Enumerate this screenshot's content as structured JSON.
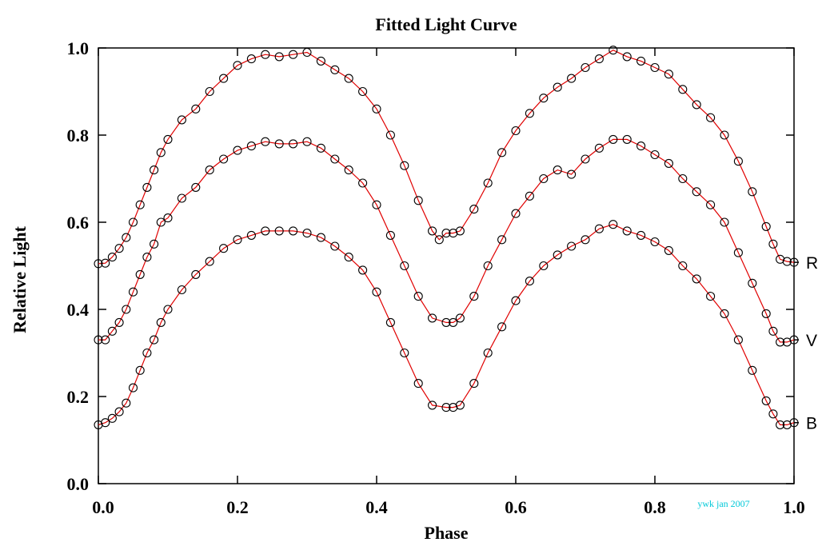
{
  "chart_data": {
    "type": "scatter",
    "title": "Fitted Light Curve",
    "xlabel": "Phase",
    "ylabel": "Relative Light",
    "xlim": [
      0.0,
      1.0
    ],
    "ylim": [
      0.0,
      1.0
    ],
    "x_ticks": [
      "0.0",
      "0.2",
      "0.4",
      "0.6",
      "0.8",
      "1.0"
    ],
    "y_ticks": [
      "0.0",
      "0.2",
      "0.4",
      "0.6",
      "0.8",
      "1.0"
    ],
    "grid": false,
    "annotation": "ywk jan 2007",
    "colors": {
      "fit": "#e00000",
      "points": "#000000",
      "annotation": "#00c8d8"
    },
    "series": [
      {
        "name": "R",
        "points": [
          [
            0.0,
            0.505
          ],
          [
            0.01,
            0.506
          ],
          [
            0.02,
            0.52
          ],
          [
            0.03,
            0.54
          ],
          [
            0.04,
            0.565
          ],
          [
            0.05,
            0.6
          ],
          [
            0.06,
            0.64
          ],
          [
            0.07,
            0.68
          ],
          [
            0.08,
            0.72
          ],
          [
            0.09,
            0.76
          ],
          [
            0.1,
            0.79
          ],
          [
            0.12,
            0.835
          ],
          [
            0.14,
            0.86
          ],
          [
            0.16,
            0.9
          ],
          [
            0.18,
            0.93
          ],
          [
            0.2,
            0.96
          ],
          [
            0.22,
            0.975
          ],
          [
            0.24,
            0.985
          ],
          [
            0.26,
            0.98
          ],
          [
            0.28,
            0.985
          ],
          [
            0.3,
            0.99
          ],
          [
            0.32,
            0.97
          ],
          [
            0.34,
            0.95
          ],
          [
            0.36,
            0.93
          ],
          [
            0.38,
            0.9
          ],
          [
            0.4,
            0.86
          ],
          [
            0.42,
            0.8
          ],
          [
            0.44,
            0.73
          ],
          [
            0.46,
            0.65
          ],
          [
            0.48,
            0.58
          ],
          [
            0.49,
            0.56
          ],
          [
            0.5,
            0.575
          ],
          [
            0.51,
            0.575
          ],
          [
            0.52,
            0.58
          ],
          [
            0.54,
            0.63
          ],
          [
            0.56,
            0.69
          ],
          [
            0.58,
            0.76
          ],
          [
            0.6,
            0.81
          ],
          [
            0.62,
            0.85
          ],
          [
            0.64,
            0.885
          ],
          [
            0.66,
            0.91
          ],
          [
            0.68,
            0.93
          ],
          [
            0.7,
            0.955
          ],
          [
            0.72,
            0.975
          ],
          [
            0.74,
            0.995
          ],
          [
            0.76,
            0.98
          ],
          [
            0.78,
            0.97
          ],
          [
            0.8,
            0.955
          ],
          [
            0.82,
            0.94
          ],
          [
            0.84,
            0.905
          ],
          [
            0.86,
            0.87
          ],
          [
            0.88,
            0.84
          ],
          [
            0.9,
            0.8
          ],
          [
            0.92,
            0.74
          ],
          [
            0.94,
            0.67
          ],
          [
            0.96,
            0.59
          ],
          [
            0.97,
            0.55
          ],
          [
            0.98,
            0.515
          ],
          [
            0.99,
            0.51
          ],
          [
            1.0,
            0.508
          ]
        ]
      },
      {
        "name": "V",
        "points": [
          [
            0.0,
            0.33
          ],
          [
            0.01,
            0.33
          ],
          [
            0.02,
            0.35
          ],
          [
            0.03,
            0.37
          ],
          [
            0.04,
            0.4
          ],
          [
            0.05,
            0.44
          ],
          [
            0.06,
            0.48
          ],
          [
            0.07,
            0.52
          ],
          [
            0.08,
            0.55
          ],
          [
            0.09,
            0.6
          ],
          [
            0.1,
            0.61
          ],
          [
            0.12,
            0.655
          ],
          [
            0.14,
            0.68
          ],
          [
            0.16,
            0.72
          ],
          [
            0.18,
            0.745
          ],
          [
            0.2,
            0.765
          ],
          [
            0.22,
            0.775
          ],
          [
            0.24,
            0.785
          ],
          [
            0.26,
            0.78
          ],
          [
            0.28,
            0.78
          ],
          [
            0.3,
            0.785
          ],
          [
            0.32,
            0.77
          ],
          [
            0.34,
            0.745
          ],
          [
            0.36,
            0.72
          ],
          [
            0.38,
            0.69
          ],
          [
            0.4,
            0.64
          ],
          [
            0.42,
            0.57
          ],
          [
            0.44,
            0.5
          ],
          [
            0.46,
            0.43
          ],
          [
            0.48,
            0.38
          ],
          [
            0.5,
            0.37
          ],
          [
            0.51,
            0.37
          ],
          [
            0.52,
            0.38
          ],
          [
            0.54,
            0.43
          ],
          [
            0.56,
            0.5
          ],
          [
            0.58,
            0.56
          ],
          [
            0.6,
            0.62
          ],
          [
            0.62,
            0.66
          ],
          [
            0.64,
            0.7
          ],
          [
            0.66,
            0.72
          ],
          [
            0.68,
            0.71
          ],
          [
            0.7,
            0.745
          ],
          [
            0.72,
            0.77
          ],
          [
            0.74,
            0.79
          ],
          [
            0.76,
            0.79
          ],
          [
            0.78,
            0.775
          ],
          [
            0.8,
            0.755
          ],
          [
            0.82,
            0.735
          ],
          [
            0.84,
            0.7
          ],
          [
            0.86,
            0.67
          ],
          [
            0.88,
            0.64
          ],
          [
            0.9,
            0.6
          ],
          [
            0.92,
            0.53
          ],
          [
            0.94,
            0.46
          ],
          [
            0.96,
            0.39
          ],
          [
            0.97,
            0.35
          ],
          [
            0.98,
            0.325
          ],
          [
            0.99,
            0.325
          ],
          [
            1.0,
            0.33
          ]
        ]
      },
      {
        "name": "B",
        "points": [
          [
            0.0,
            0.135
          ],
          [
            0.01,
            0.14
          ],
          [
            0.02,
            0.15
          ],
          [
            0.03,
            0.165
          ],
          [
            0.04,
            0.185
          ],
          [
            0.05,
            0.22
          ],
          [
            0.06,
            0.26
          ],
          [
            0.07,
            0.3
          ],
          [
            0.08,
            0.33
          ],
          [
            0.09,
            0.37
          ],
          [
            0.1,
            0.4
          ],
          [
            0.12,
            0.445
          ],
          [
            0.14,
            0.48
          ],
          [
            0.16,
            0.51
          ],
          [
            0.18,
            0.54
          ],
          [
            0.2,
            0.56
          ],
          [
            0.22,
            0.57
          ],
          [
            0.24,
            0.58
          ],
          [
            0.26,
            0.58
          ],
          [
            0.28,
            0.58
          ],
          [
            0.3,
            0.575
          ],
          [
            0.32,
            0.565
          ],
          [
            0.34,
            0.545
          ],
          [
            0.36,
            0.52
          ],
          [
            0.38,
            0.49
          ],
          [
            0.4,
            0.44
          ],
          [
            0.42,
            0.37
          ],
          [
            0.44,
            0.3
          ],
          [
            0.46,
            0.23
          ],
          [
            0.48,
            0.18
          ],
          [
            0.5,
            0.175
          ],
          [
            0.51,
            0.175
          ],
          [
            0.52,
            0.18
          ],
          [
            0.54,
            0.23
          ],
          [
            0.56,
            0.3
          ],
          [
            0.58,
            0.36
          ],
          [
            0.6,
            0.42
          ],
          [
            0.62,
            0.465
          ],
          [
            0.64,
            0.5
          ],
          [
            0.66,
            0.525
          ],
          [
            0.68,
            0.545
          ],
          [
            0.7,
            0.56
          ],
          [
            0.72,
            0.585
          ],
          [
            0.74,
            0.595
          ],
          [
            0.76,
            0.58
          ],
          [
            0.78,
            0.57
          ],
          [
            0.8,
            0.555
          ],
          [
            0.82,
            0.535
          ],
          [
            0.84,
            0.5
          ],
          [
            0.86,
            0.47
          ],
          [
            0.88,
            0.43
          ],
          [
            0.9,
            0.39
          ],
          [
            0.92,
            0.33
          ],
          [
            0.94,
            0.26
          ],
          [
            0.96,
            0.19
          ],
          [
            0.97,
            0.16
          ],
          [
            0.98,
            0.135
          ],
          [
            0.99,
            0.135
          ],
          [
            1.0,
            0.14
          ]
        ]
      }
    ]
  }
}
